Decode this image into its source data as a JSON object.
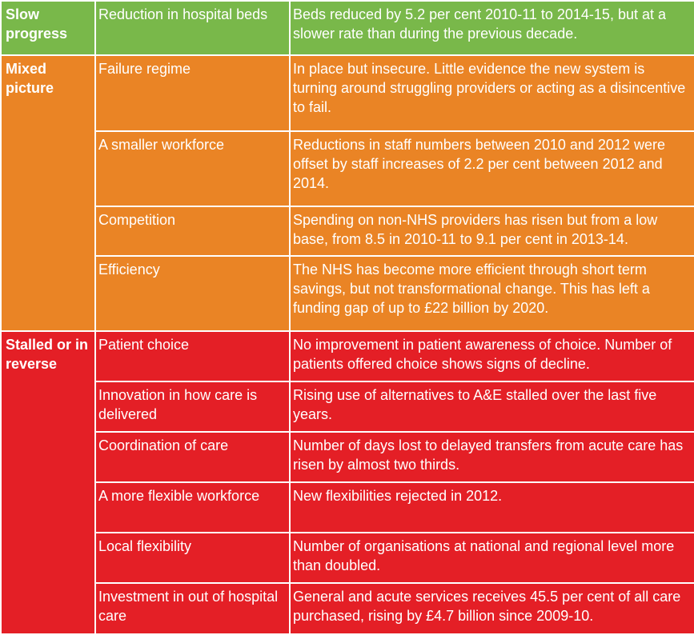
{
  "colors": {
    "slow_progress": "#79b84a",
    "mixed_picture": "#ea8425",
    "stalled": "#e41f26",
    "text": "#ffffff",
    "border": "#ffffff"
  },
  "groups": [
    {
      "category": "Slow progress",
      "color": "#79b84a",
      "rows": [
        {
          "area": "Reduction in hospital beds",
          "finding": "Beds reduced by 5.2 per cent 2010-11 to 2014-15, but at a slower rate than during the previous decade."
        }
      ]
    },
    {
      "category": "Mixed picture",
      "color": "#ea8425",
      "rows": [
        {
          "area": "Failure regime",
          "finding": "In place but insecure. Little evidence the new system is turning around struggling providers or acting as a disincentive to fail."
        },
        {
          "area": "A smaller workforce",
          "finding": "Reductions in staff numbers between 2010 and 2012 were offset by staff increases of 2.2 per cent between 2012 and 2014."
        },
        {
          "area": "Competition",
          "finding": "Spending on non-NHS providers has risen but from a low base, from 8.5 in 2010-11 to 9.1 per cent in 2013-14."
        },
        {
          "area": "Efficiency",
          "finding": "The NHS has become more efficient through short term savings, but not transformational change. This has left a funding gap of up to £22 billion by 2020."
        }
      ]
    },
    {
      "category": "Stalled or in reverse",
      "color": "#e41f26",
      "rows": [
        {
          "area": "Patient choice",
          "finding": "No improvement in patient awareness of choice. Number of patients offered choice shows signs of decline."
        },
        {
          "area": "Innovation in how care is delivered",
          "finding": "Rising use of alternatives to A&E stalled over the last five years."
        },
        {
          "area": "Coordination of care",
          "finding": "Number of days lost to delayed transfers from acute care has risen by almost two thirds."
        },
        {
          "area": "A more flexible workforce",
          "finding": "New flexibilities rejected in 2012."
        },
        {
          "area": "Local flexibility",
          "finding": "Number of organisations at national and regional level more than doubled."
        },
        {
          "area": "Investment in out of hospital care",
          "finding": "General and acute services receives 45.5 per cent of all care purchased, rising by £4.7 billion since 2009-10."
        }
      ]
    }
  ]
}
